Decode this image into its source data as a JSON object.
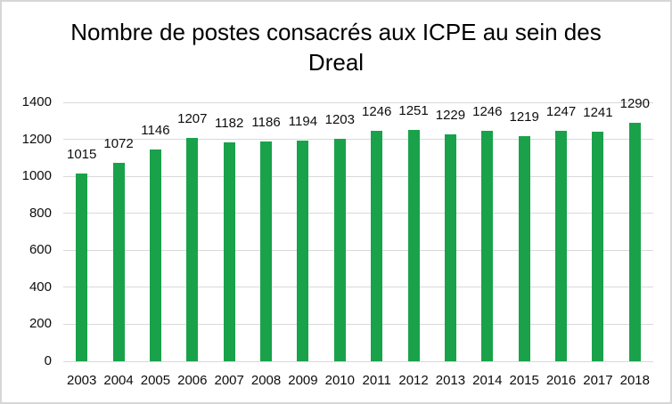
{
  "chart_data": {
    "type": "bar",
    "title": "Nombre de postes consacrés aux ICPE au sein des Dreal",
    "title_lines": [
      "Nombre de postes consacrés aux ICPE au sein des",
      "Dreal"
    ],
    "categories": [
      "2003",
      "2004",
      "2005",
      "2006",
      "2007",
      "2008",
      "2009",
      "2010",
      "2011",
      "2012",
      "2013",
      "2014",
      "2015",
      "2016",
      "2017",
      "2018"
    ],
    "values": [
      1015,
      1072,
      1146,
      1207,
      1182,
      1186,
      1194,
      1203,
      1246,
      1251,
      1229,
      1246,
      1219,
      1247,
      1241,
      1290
    ],
    "xlabel": "",
    "ylabel": "",
    "ylim": [
      0,
      1400
    ],
    "ytick_interval": 200,
    "yticks": [
      0,
      200,
      400,
      600,
      800,
      1000,
      1200,
      1400
    ],
    "grid": true,
    "legend": false,
    "data_labels": true,
    "colors": {
      "bar": "#19A24A",
      "gridline": "#D9D9D9",
      "text": "#0D0D0D",
      "title_text": "#000000",
      "background": "#FFFFFF",
      "frame_border": "#D6D6D6"
    }
  }
}
